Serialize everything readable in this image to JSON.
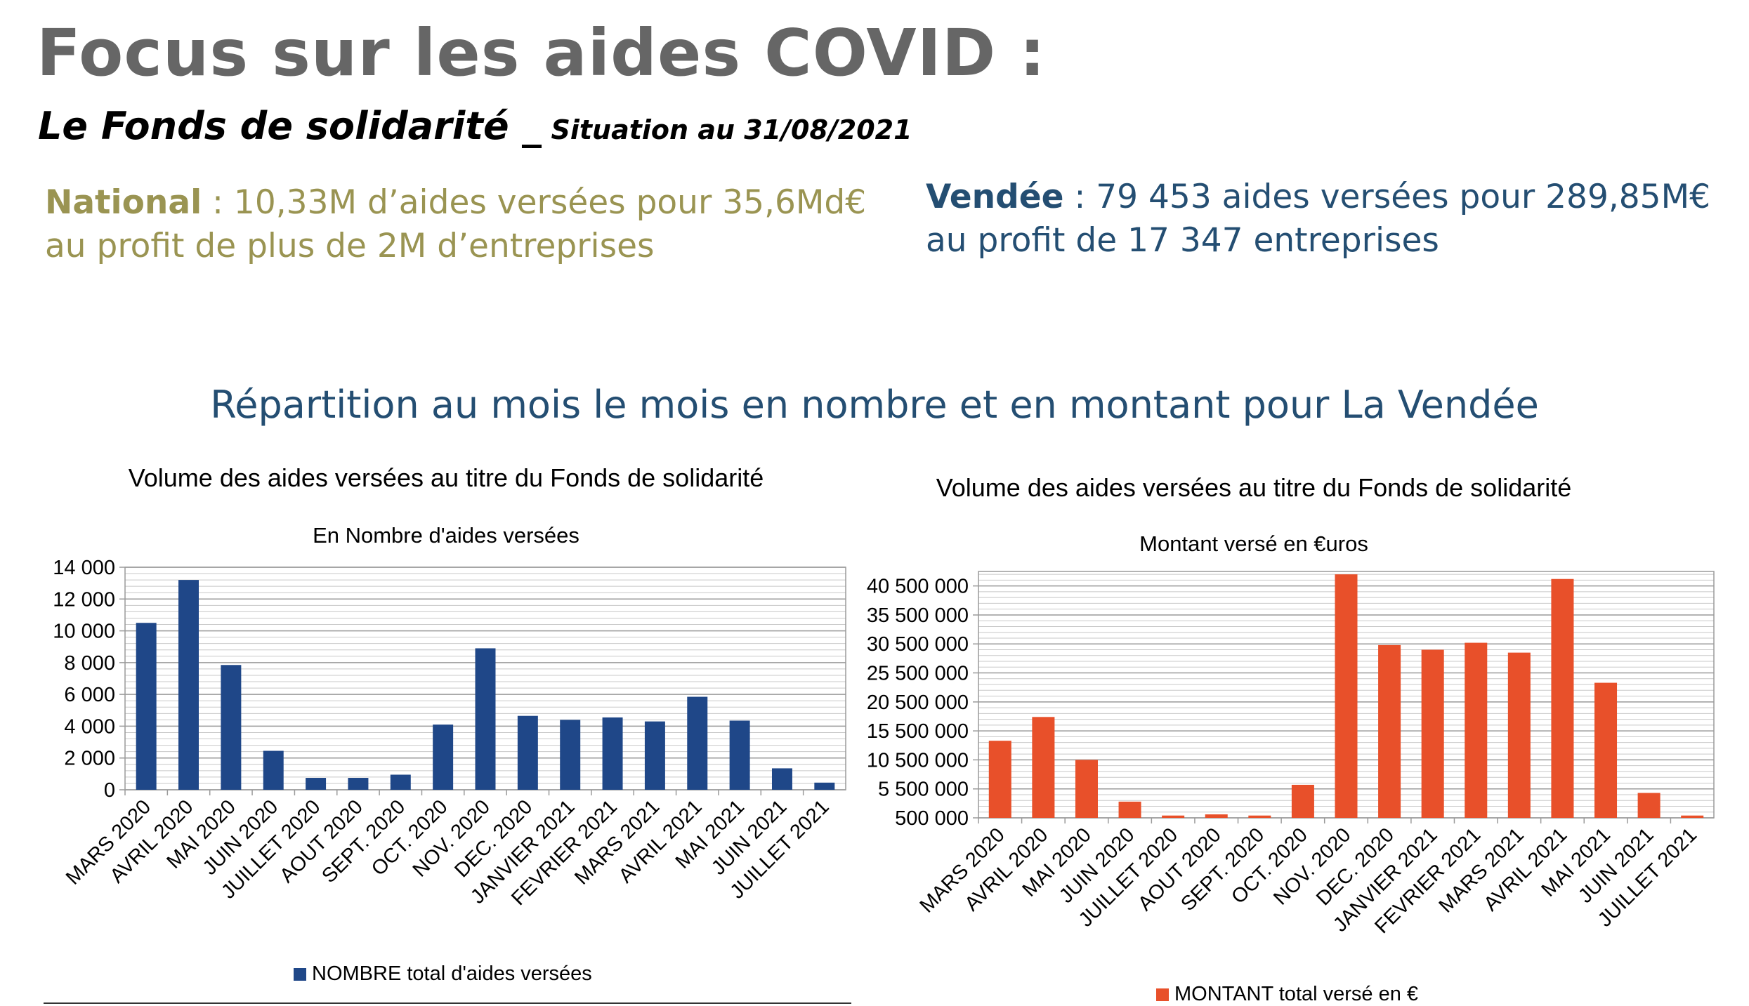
{
  "header": {
    "title": "Focus sur les aides COVID :",
    "subtitle": "Le Fonds de solidarité _",
    "date_note": "Situation au 31/08/2021"
  },
  "national": {
    "label": "National",
    "line1": " : 10,33M d’aides versées pour 35,6Md€",
    "line2": "au profit de plus de 2M d’entreprises"
  },
  "vendee": {
    "label": "Vendée",
    "line1": " : 79 453 aides versées pour 289,85M€",
    "line2": "au profit de 17 347 entreprises"
  },
  "section_title": "Répartition au mois le mois en nombre et en montant pour La Vendée",
  "colors": {
    "title_gray": "#666666",
    "national": "#9a9452",
    "vendee": "#244e72",
    "bar_blue": "#1f4788",
    "bar_orange": "#e8502a"
  },
  "chart_data": [
    {
      "type": "bar",
      "title": "Volume des aides versées au titre du Fonds de solidarité",
      "subtitle": "En Nombre d'aides versées",
      "categories": [
        "MARS 2020",
        "AVRIL 2020",
        "MAI 2020",
        "JUIN 2020",
        "JUILLET 2020",
        "AOUT 2020",
        "SEPT. 2020",
        "OCT. 2020",
        "NOV. 2020",
        "DEC. 2020",
        "JANVIER 2021",
        "FEVRIER 2021",
        "MARS 2021",
        "AVRIL 2021",
        "MAI 2021",
        "JUIN 2021",
        "JUILLET 2021"
      ],
      "series": [
        {
          "name": "NOMBRE total d'aides versées",
          "values": [
            10500,
            13200,
            7850,
            2450,
            750,
            750,
            950,
            4100,
            8900,
            4650,
            4400,
            4550,
            4300,
            5850,
            4350,
            1350,
            450
          ]
        }
      ],
      "ylim": [
        0,
        14000
      ],
      "yticks": [
        0,
        2000,
        4000,
        6000,
        8000,
        10000,
        12000,
        14000
      ],
      "ytick_labels": [
        "0",
        "2 000",
        "4 000",
        "6 000",
        "8 000",
        "10 000",
        "12 000",
        "14 000"
      ],
      "grid": true,
      "legend": "bottom",
      "color": "#1f4788"
    },
    {
      "type": "bar",
      "title": "Volume des aides versées au titre du Fonds de solidarité",
      "subtitle": "Montant versé en €uros",
      "categories": [
        "MARS 2020",
        "AVRIL 2020",
        "MAI 2020",
        "JUIN 2020",
        "JUILLET 2020",
        "AOUT 2020",
        "SEPT. 2020",
        "OCT. 2020",
        "NOV. 2020",
        "DEC. 2020",
        "JANVIER 2021",
        "FEVRIER 2021",
        "MARS 2021",
        "AVRIL 2021",
        "MAI 2021",
        "JUIN 2021",
        "JUILLET 2021"
      ],
      "series": [
        {
          "name": "MONTANT total versé en €",
          "values": [
            13800000,
            17900000,
            10500000,
            3300000,
            900000,
            1100000,
            900000,
            6200000,
            42500000,
            30300000,
            29500000,
            30700000,
            29000000,
            41700000,
            23800000,
            4800000,
            900000
          ]
        }
      ],
      "ylim": [
        500000,
        43000000
      ],
      "yticks": [
        500000,
        5500000,
        10500000,
        15500000,
        20500000,
        25500000,
        30500000,
        35500000,
        40500000
      ],
      "ytick_labels": [
        "500 000",
        "5 500 000",
        "10 500 000",
        "15 500 000",
        "20 500 000",
        "25 500 000",
        "30 500 000",
        "35 500 000",
        "40 500 000"
      ],
      "grid": true,
      "legend": "bottom",
      "color": "#e8502a"
    }
  ]
}
